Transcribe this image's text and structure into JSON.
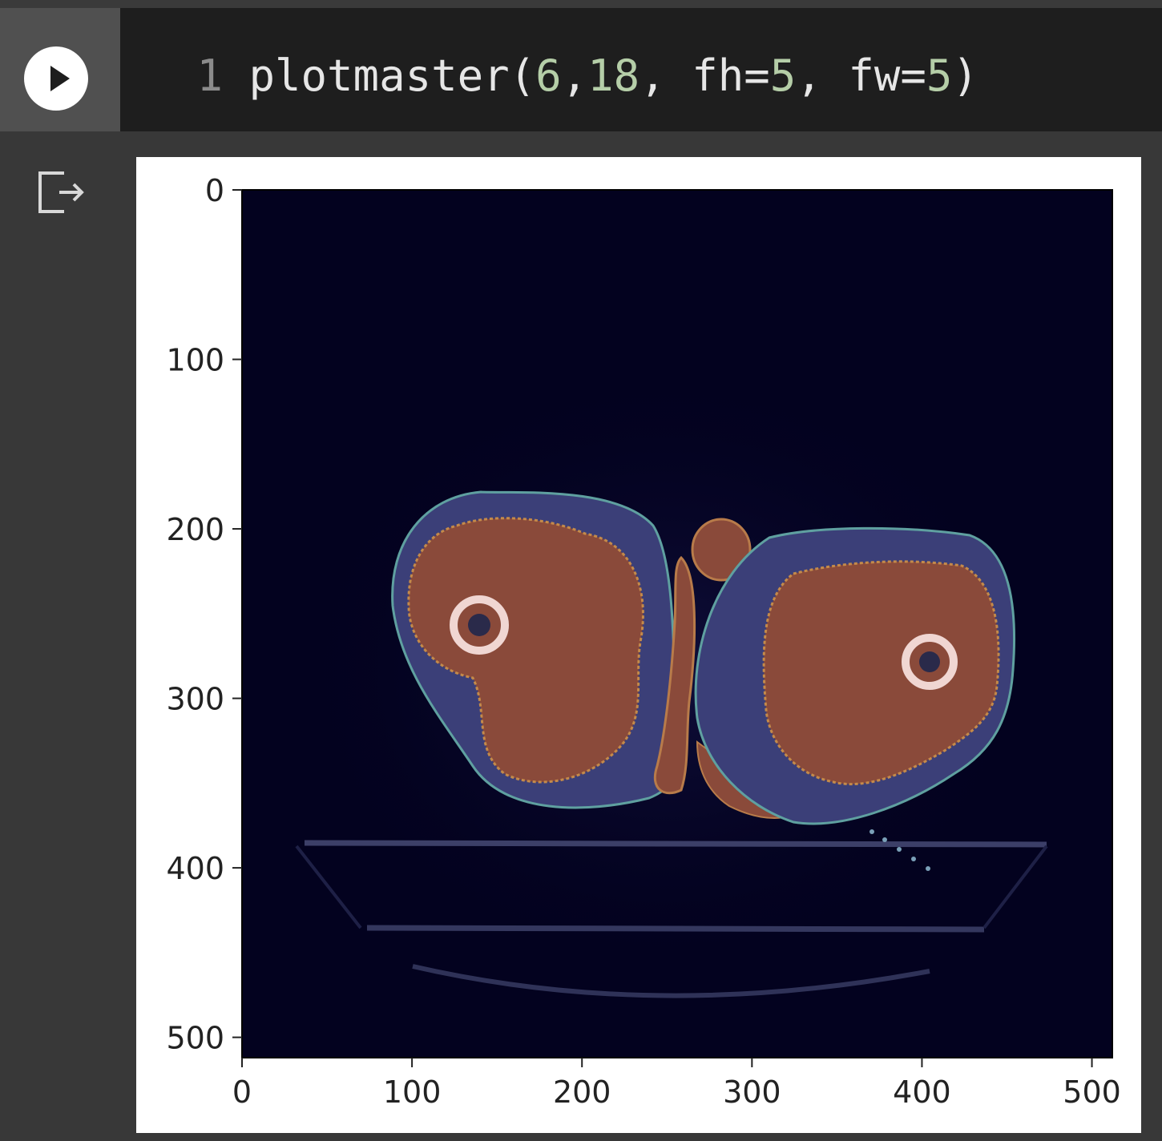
{
  "code_cell": {
    "line_number": "1",
    "function_name": "plotmaster",
    "arg1": "6",
    "arg2": "18",
    "kw1_name": "fh",
    "kw1_value": "5",
    "kw2_name": "fw",
    "kw2_value": "5"
  },
  "icons": {
    "run": "play-icon",
    "output": "output-redirect-icon"
  },
  "colors": {
    "code_background": "#1e1e1e",
    "number_token": "#b5cea8",
    "plot_background": "#03021f",
    "muscle_overlay": "#8a4a3a",
    "fat_overlay": "#3b3f78"
  },
  "chart_data": {
    "type": "image",
    "xlim": [
      0,
      512
    ],
    "ylim": [
      512,
      0
    ],
    "xticks": [
      "0",
      "100",
      "200",
      "300",
      "400",
      "500"
    ],
    "yticks": [
      "0",
      "100",
      "200",
      "300",
      "400",
      "500"
    ],
    "grid": false
  }
}
